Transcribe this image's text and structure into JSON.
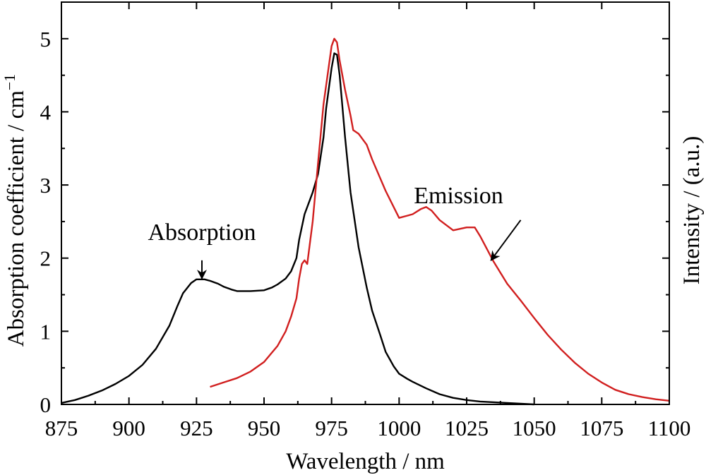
{
  "chart_data": {
    "type": "line",
    "xlabel": "Wavelength / nm",
    "ylabel": "Absorption coefficient / cm",
    "ylabel_sup": "−1",
    "y2label": "Intensity / (a.u.)",
    "xlim": [
      875,
      1100
    ],
    "ylim": [
      0,
      5.5
    ],
    "xticks": [
      875,
      900,
      925,
      950,
      975,
      1000,
      1025,
      1050,
      1075,
      1100
    ],
    "yticks": [
      0,
      1,
      2,
      3,
      4,
      5
    ],
    "grid": false,
    "legend": "none",
    "series": [
      {
        "color": "#000000",
        "axis": "left",
        "x": [
          875,
          880,
          885,
          890,
          895,
          900,
          905,
          910,
          915,
          918,
          920,
          923,
          925,
          928,
          930,
          933,
          935,
          938,
          940,
          945,
          950,
          953,
          955,
          958,
          960,
          962,
          963,
          965,
          967,
          968,
          970,
          972,
          973,
          975,
          976,
          977,
          978,
          980,
          982,
          985,
          988,
          990,
          993,
          995,
          998,
          1000,
          1003,
          1005,
          1010,
          1015,
          1020,
          1025,
          1030,
          1035,
          1040,
          1045,
          1050
        ],
        "y": [
          0.02,
          0.06,
          0.12,
          0.19,
          0.28,
          0.39,
          0.54,
          0.76,
          1.08,
          1.35,
          1.52,
          1.66,
          1.71,
          1.71,
          1.69,
          1.65,
          1.61,
          1.57,
          1.55,
          1.55,
          1.56,
          1.6,
          1.64,
          1.72,
          1.82,
          2.0,
          2.25,
          2.6,
          2.8,
          2.9,
          3.15,
          3.65,
          4.05,
          4.6,
          4.8,
          4.78,
          4.5,
          3.65,
          2.9,
          2.15,
          1.6,
          1.28,
          0.95,
          0.72,
          0.52,
          0.42,
          0.35,
          0.31,
          0.22,
          0.14,
          0.09,
          0.06,
          0.04,
          0.03,
          0.02,
          0.01,
          0.0
        ]
      },
      {
        "color": "#d11f1f",
        "axis": "right",
        "x": [
          930,
          935,
          940,
          945,
          950,
          955,
          958,
          960,
          962,
          963,
          964,
          965,
          966,
          968,
          970,
          972,
          975,
          976,
          977,
          978,
          980,
          982,
          983,
          985,
          988,
          990,
          995,
          1000,
          1003,
          1005,
          1008,
          1010,
          1012,
          1015,
          1020,
          1025,
          1028,
          1030,
          1035,
          1040,
          1045,
          1050,
          1055,
          1060,
          1065,
          1070,
          1075,
          1080,
          1085,
          1090,
          1095,
          1100
        ],
        "y": [
          0.24,
          0.3,
          0.36,
          0.45,
          0.58,
          0.8,
          1.0,
          1.2,
          1.45,
          1.72,
          1.92,
          1.97,
          1.92,
          2.5,
          3.3,
          4.1,
          4.9,
          5.0,
          4.95,
          4.7,
          4.3,
          3.95,
          3.75,
          3.7,
          3.55,
          3.35,
          2.92,
          2.55,
          2.58,
          2.6,
          2.67,
          2.7,
          2.65,
          2.52,
          2.38,
          2.42,
          2.42,
          2.3,
          1.95,
          1.65,
          1.42,
          1.18,
          0.95,
          0.75,
          0.57,
          0.42,
          0.3,
          0.2,
          0.14,
          0.1,
          0.07,
          0.05
        ]
      }
    ],
    "annotations": [
      {
        "text": "Absorption",
        "text_x": 927,
        "text_y": 2.25,
        "arrow_from": [
          927,
          1.97
        ],
        "arrow_to": [
          927,
          1.72
        ]
      },
      {
        "text": "Emission",
        "text_x": 1022,
        "text_y": 2.75,
        "arrow_from": [
          1045,
          2.52
        ],
        "arrow_to": [
          1034,
          1.97
        ]
      }
    ]
  }
}
